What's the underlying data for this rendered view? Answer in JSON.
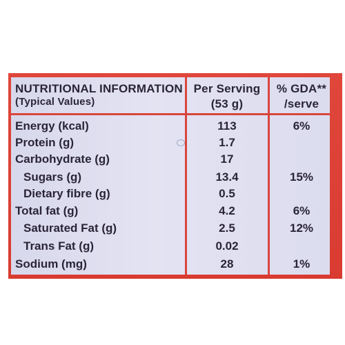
{
  "header": {
    "col1_line1": "NUTRITIONAL INFORMATION",
    "col1_line2": "(Typical Values)",
    "col2_line1": "Per Serving",
    "col2_line2": "(53 g)",
    "col3_line1": "% GDA**",
    "col3_line2": "/serve"
  },
  "rows": [
    {
      "nutrient": "Energy (kcal)",
      "per_serving": "113",
      "gda": "6%"
    },
    {
      "nutrient": "Protein (g)",
      "per_serving": "1.7",
      "gda": ""
    },
    {
      "nutrient": "Carbohydrate (g)",
      "per_serving": "17",
      "gda": ""
    },
    {
      "nutrient": "Sugars (g)",
      "per_serving": "13.4",
      "gda": "15%"
    },
    {
      "nutrient": "Dietary fibre (g)",
      "per_serving": "0.5",
      "gda": ""
    },
    {
      "nutrient": "Total fat (g)",
      "per_serving": "4.2",
      "gda": "6%"
    },
    {
      "nutrient": "Saturated Fat (g)",
      "per_serving": "2.5",
      "gda": "12%"
    },
    {
      "nutrient": "Trans Fat (g)",
      "per_serving": "0.02",
      "gda": ""
    },
    {
      "nutrient": "Sodium (mg)",
      "per_serving": "28",
      "gda": "1%"
    }
  ],
  "colors": {
    "border_red": "#d9453c",
    "panel": "#e0dff0",
    "text": "#2a2536"
  }
}
